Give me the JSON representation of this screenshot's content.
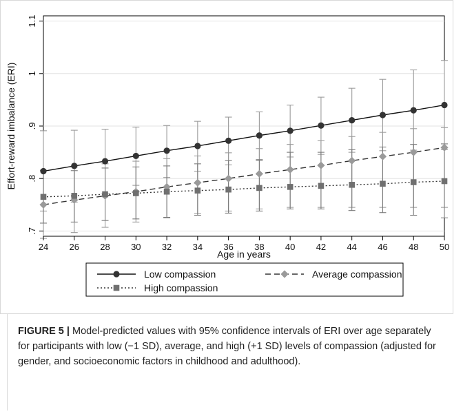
{
  "chart_data": {
    "type": "line",
    "xlabel": "Age in years",
    "ylabel": "Effort-reward imbalance (ERI)",
    "x": [
      24,
      26,
      28,
      30,
      32,
      34,
      36,
      38,
      40,
      42,
      44,
      46,
      48,
      50
    ],
    "x_ticks": [
      "24",
      "26",
      "28",
      "30",
      "32",
      "34",
      "36",
      "38",
      "40",
      "42",
      "44",
      "46",
      "48",
      "50"
    ],
    "y_ticks": [
      {
        "value": 0.7,
        "label": ".7"
      },
      {
        "value": 0.8,
        "label": ".8"
      },
      {
        "value": 0.9,
        "label": ".9"
      },
      {
        "value": 1.0,
        "label": "1"
      },
      {
        "value": 1.1,
        "label": "1.1"
      }
    ],
    "xlim": [
      24,
      50
    ],
    "ylim": [
      0.69,
      1.11
    ],
    "grid": "horizontal",
    "legend_position": "bottom",
    "series": [
      {
        "name": "Low compassion",
        "color": "#333333",
        "marker": "circle",
        "line_style": "solid",
        "values": [
          0.814,
          0.824,
          0.833,
          0.843,
          0.853,
          0.862,
          0.872,
          0.882,
          0.891,
          0.901,
          0.911,
          0.921,
          0.93,
          0.94
        ],
        "ci_lower": [
          0.738,
          0.755,
          0.772,
          0.787,
          0.802,
          0.814,
          0.826,
          0.834,
          0.841,
          0.846,
          0.85,
          0.853,
          0.854,
          0.855
        ],
        "ci_upper": [
          0.891,
          0.892,
          0.894,
          0.898,
          0.901,
          0.909,
          0.917,
          0.927,
          0.94,
          0.955,
          0.972,
          0.989,
          1.007,
          1.025
        ]
      },
      {
        "name": "Average compassion",
        "color": "#9a9a9a",
        "marker": "diamond",
        "line_style": "dashed",
        "values": [
          0.75,
          0.759,
          0.767,
          0.775,
          0.784,
          0.792,
          0.8,
          0.809,
          0.817,
          0.825,
          0.834,
          0.842,
          0.85,
          0.859
        ],
        "ci_lower": [
          0.686,
          0.697,
          0.707,
          0.717,
          0.725,
          0.733,
          0.738,
          0.742,
          0.745,
          0.745,
          0.745,
          0.745,
          0.745,
          0.745
        ],
        "ci_upper": [
          0.816,
          0.822,
          0.828,
          0.833,
          0.838,
          0.843,
          0.849,
          0.857,
          0.865,
          0.872,
          0.88,
          0.888,
          0.895,
          0.897
        ]
      },
      {
        "name": "High compassion",
        "color": "#707070",
        "marker": "square",
        "line_style": "dotted",
        "values": [
          0.765,
          0.767,
          0.77,
          0.772,
          0.775,
          0.777,
          0.779,
          0.782,
          0.784,
          0.786,
          0.788,
          0.79,
          0.793,
          0.795
        ],
        "ci_lower": [
          0.715,
          0.717,
          0.72,
          0.723,
          0.726,
          0.73,
          0.734,
          0.738,
          0.742,
          0.742,
          0.739,
          0.735,
          0.73,
          0.725
        ],
        "ci_upper": [
          0.815,
          0.815,
          0.82,
          0.822,
          0.824,
          0.828,
          0.834,
          0.836,
          0.85,
          0.85,
          0.855,
          0.86,
          0.865,
          0.866
        ]
      }
    ]
  },
  "caption": {
    "label": "FIGURE 5 |",
    "text": " Model-predicted values with 95% confidence intervals of ERI over age separately for participants with low (−1 SD), average, and high (+1 SD) levels of compassion (adjusted for gender, and socioeconomic factors in childhood and adulthood)."
  }
}
